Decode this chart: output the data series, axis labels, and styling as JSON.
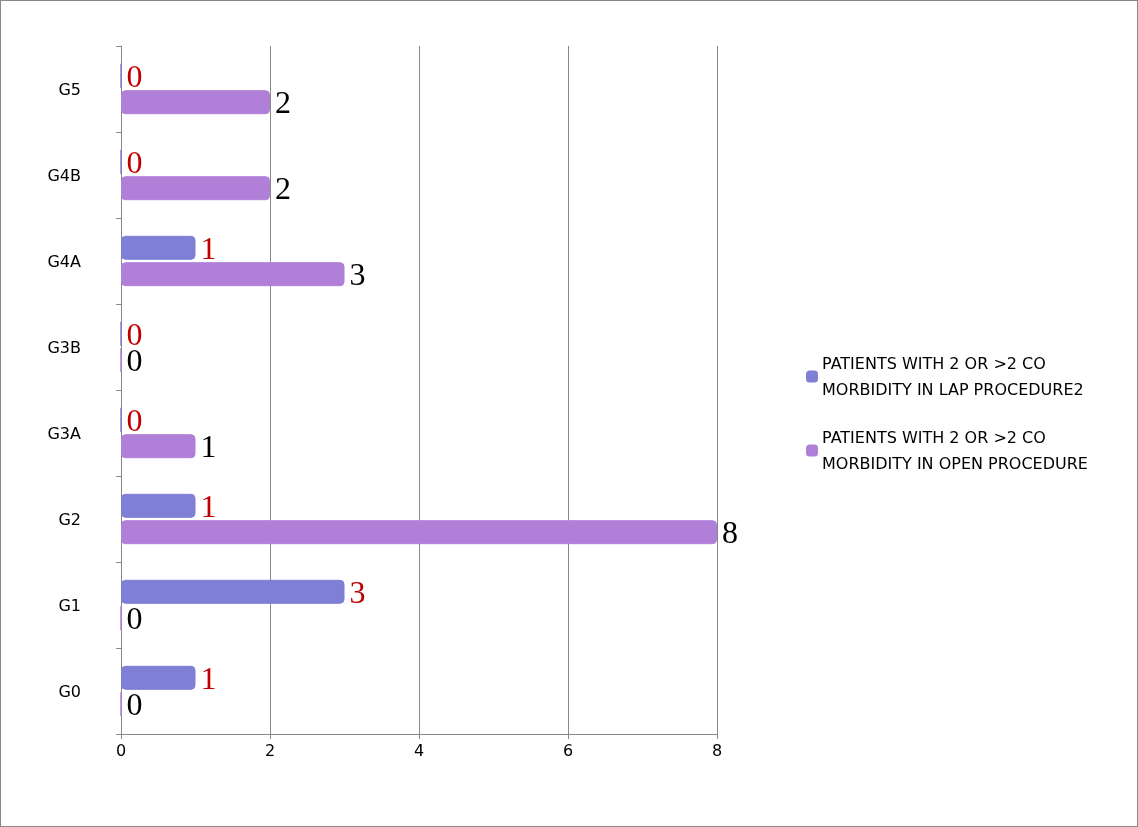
{
  "chart_data": {
    "type": "bar",
    "orientation": "horizontal",
    "categories": [
      "G5",
      "G4B",
      "G4A",
      "G3B",
      "G3A",
      "G2",
      "G1",
      "G0"
    ],
    "series": [
      {
        "name": "PATIENTS WITH 2 OR >2 CO MORBIDITY IN LAP PROCEDURE2",
        "color": "#7f7fd6",
        "values": [
          0,
          0,
          1,
          0,
          0,
          1,
          3,
          1
        ]
      },
      {
        "name": "PATIENTS WITH 2 OR >2 CO MORBIDITY IN OPEN PROCEDURE",
        "color": "#b07fd8",
        "values": [
          2,
          2,
          3,
          0,
          1,
          8,
          0,
          0
        ]
      }
    ],
    "xlim": [
      0,
      8
    ],
    "xticks": [
      0,
      2,
      4,
      6,
      8
    ],
    "grid": "x",
    "legend": "right",
    "data_labels": true
  }
}
